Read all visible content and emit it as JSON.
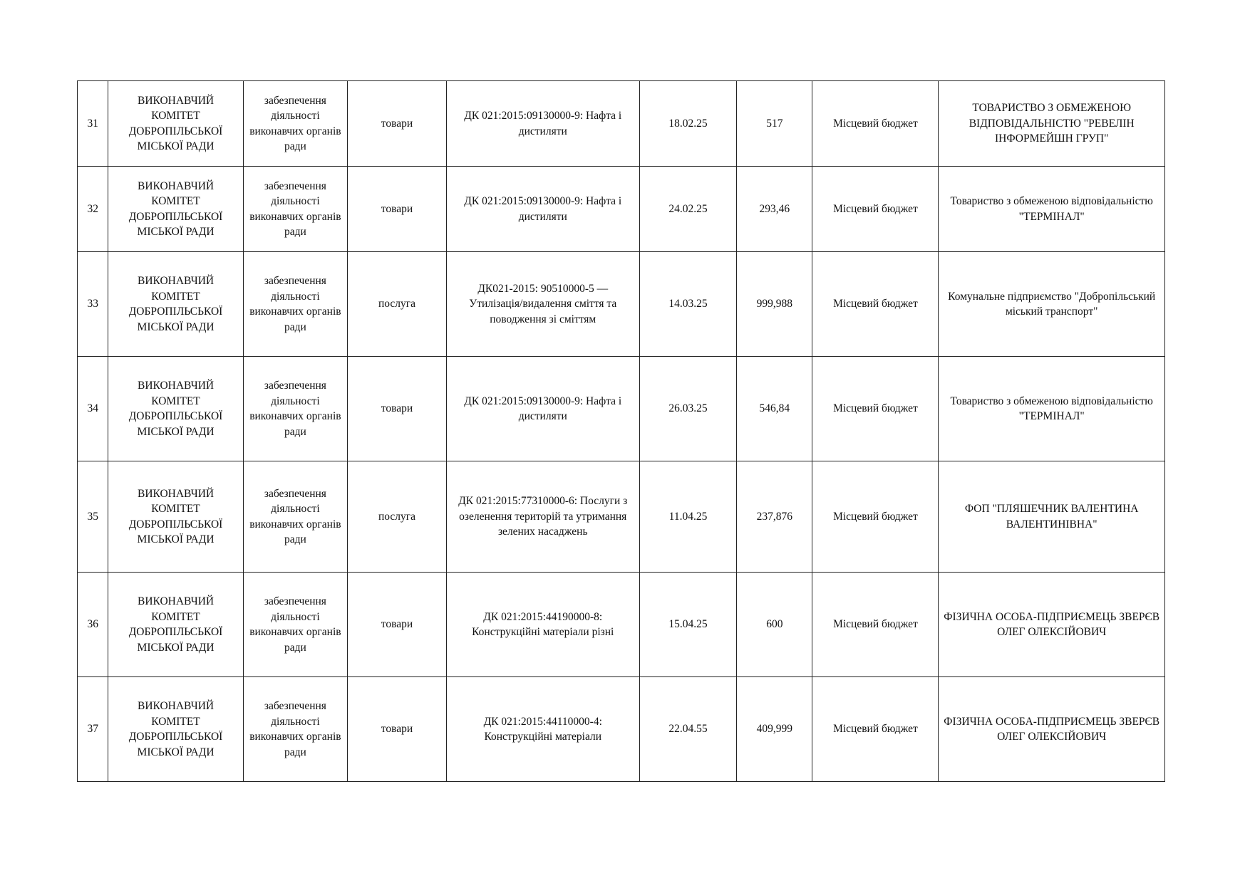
{
  "rows": [
    {
      "no": "31",
      "customer": "ВИКОНАВЧИЙ КОМІТЕТ ДОБРОПІЛЬСЬКОЇ МІСЬКОЇ РАДИ",
      "purpose": "забезпечення діяльності виконавчих органів ради",
      "type": "товари",
      "code": "ДК 021:2015:09130000-9: Нафта і дистиляти",
      "date": "18.02.25",
      "amount": "517",
      "source": "Місцевий бюджет",
      "supplier": "ТОВАРИСТВО З ОБМЕЖЕНОЮ ВІДПОВІДАЛЬНІСТЮ \"РЕВЕЛІН ІНФОРМЕЙШН ГРУП\""
    },
    {
      "no": "32",
      "customer": "ВИКОНАВЧИЙ КОМІТЕТ ДОБРОПІЛЬСЬКОЇ МІСЬКОЇ РАДИ",
      "purpose": "забезпечення діяльності виконавчих органів ради",
      "type": "товари",
      "code": "ДК 021:2015:09130000-9: Нафта і дистиляти",
      "date": "24.02.25",
      "amount": "293,46",
      "source": "Місцевий бюджет",
      "supplier": "Товариство з обмеженою відповідальністю \"ТЕРМІНАЛ\""
    },
    {
      "no": "33",
      "customer": "ВИКОНАВЧИЙ КОМІТЕТ ДОБРОПІЛЬСЬКОЇ МІСЬКОЇ РАДИ",
      "purpose": "забезпечення діяльності виконавчих органів ради",
      "type": "послуга",
      "code": "ДК021-2015: 90510000-5 — Утилізація/видалення сміття та поводження зі сміттям",
      "date": "14.03.25",
      "amount": "999,988",
      "source": "Місцевий бюджет",
      "supplier": "Комунальне підприємство \"Добропільський міський транспорт\""
    },
    {
      "no": "34",
      "customer": "ВИКОНАВЧИЙ КОМІТЕТ ДОБРОПІЛЬСЬКОЇ МІСЬКОЇ РАДИ",
      "purpose": "забезпечення діяльності виконавчих органів ради",
      "type": "товари",
      "code": "ДК 021:2015:09130000-9: Нафта і дистиляти",
      "date": "26.03.25",
      "amount": "546,84",
      "source": "Місцевий бюджет",
      "supplier": "Товариство з обмеженою відповідальністю \"ТЕРМІНАЛ\""
    },
    {
      "no": "35",
      "customer": "ВИКОНАВЧИЙ КОМІТЕТ ДОБРОПІЛЬСЬКОЇ МІСЬКОЇ РАДИ",
      "purpose": "забезпечення діяльності виконавчих органів ради",
      "type": "послуга",
      "code": "ДК 021:2015:77310000-6: Послуги з озеленення територій та утримання зелених насаджень",
      "date": "11.04.25",
      "amount": "237,876",
      "source": "Місцевий бюджет",
      "supplier": "ФОП \"ПЛЯШЕЧНИК ВАЛЕНТИНА ВАЛЕНТИНІВНА\""
    },
    {
      "no": "36",
      "customer": "ВИКОНАВЧИЙ КОМІТЕТ ДОБРОПІЛЬСЬКОЇ МІСЬКОЇ РАДИ",
      "purpose": "забезпечення діяльності виконавчих органів ради",
      "type": "товари",
      "code": "ДК 021:2015:44190000-8: Конструкційні матеріали різні",
      "date": "15.04.25",
      "amount": "600",
      "source": "Місцевий бюджет",
      "supplier": "ФІЗИЧНА ОСОБА-ПІДПРИЄМЕЦЬ ЗВЕРЄВ ОЛЕГ ОЛЕКСІЙОВИЧ"
    },
    {
      "no": "37",
      "customer": "ВИКОНАВЧИЙ КОМІТЕТ ДОБРОПІЛЬСЬКОЇ МІСЬКОЇ РАДИ",
      "purpose": "забезпечення діяльності виконавчих органів ради",
      "type": "товари",
      "code": "ДК 021:2015:44110000-4: Конструкційні матеріали",
      "date": "22.04.55",
      "amount": "409,999",
      "source": "Місцевий бюджет",
      "supplier": "ФІЗИЧНА ОСОБА-ПІДПРИЄМЕЦЬ ЗВЕРЄВ ОЛЕГ ОЛЕКСІЙОВИЧ"
    }
  ]
}
